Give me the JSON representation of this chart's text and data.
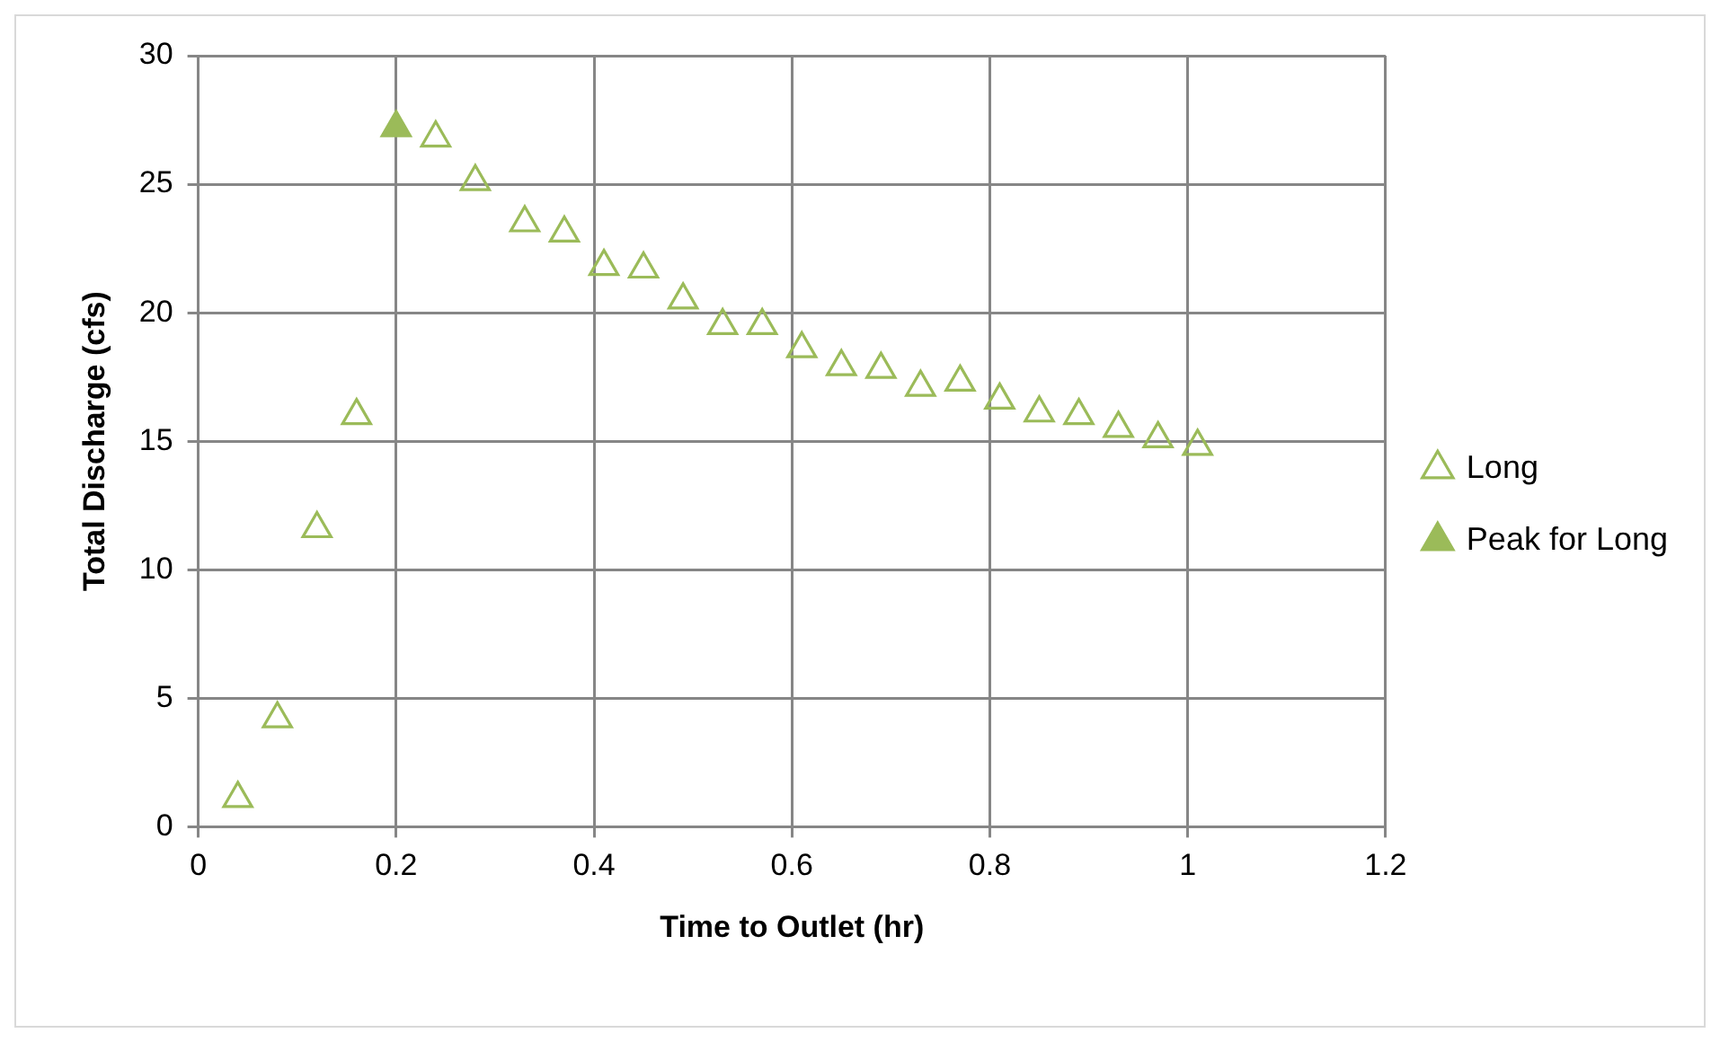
{
  "chart_data": {
    "type": "scatter",
    "xlabel": "Time to Outlet (hr)",
    "ylabel": "Total Discharge (cfs)",
    "xlim": [
      0,
      1.2
    ],
    "xticks": [
      0,
      0.2,
      0.4,
      0.6,
      0.8,
      1,
      1.2
    ],
    "ylim": [
      0,
      30
    ],
    "yticks": [
      0,
      5,
      10,
      15,
      20,
      25,
      30
    ],
    "grid": true,
    "legend": "right",
    "marker": "triangle",
    "series": [
      {
        "name": "Long",
        "color": "#9bbb59",
        "x": [
          0.04,
          0.08,
          0.12,
          0.16,
          0.24,
          0.28,
          0.33,
          0.37,
          0.41,
          0.45,
          0.49,
          0.53,
          0.57,
          0.61,
          0.65,
          0.69,
          0.73,
          0.77,
          0.81,
          0.85,
          0.89,
          0.93,
          0.97,
          1.01
        ],
        "values": [
          1.1,
          4.2,
          11.6,
          16.0,
          26.8,
          25.1,
          23.5,
          23.1,
          21.8,
          21.7,
          20.5,
          19.5,
          19.5,
          18.6,
          17.9,
          17.8,
          17.1,
          17.3,
          16.6,
          16.1,
          16.0,
          15.5,
          15.1,
          14.8
        ]
      },
      {
        "name": "Peak for Long",
        "color": "#9bbb59",
        "x": [
          0.2
        ],
        "values": [
          27.2
        ]
      }
    ]
  }
}
